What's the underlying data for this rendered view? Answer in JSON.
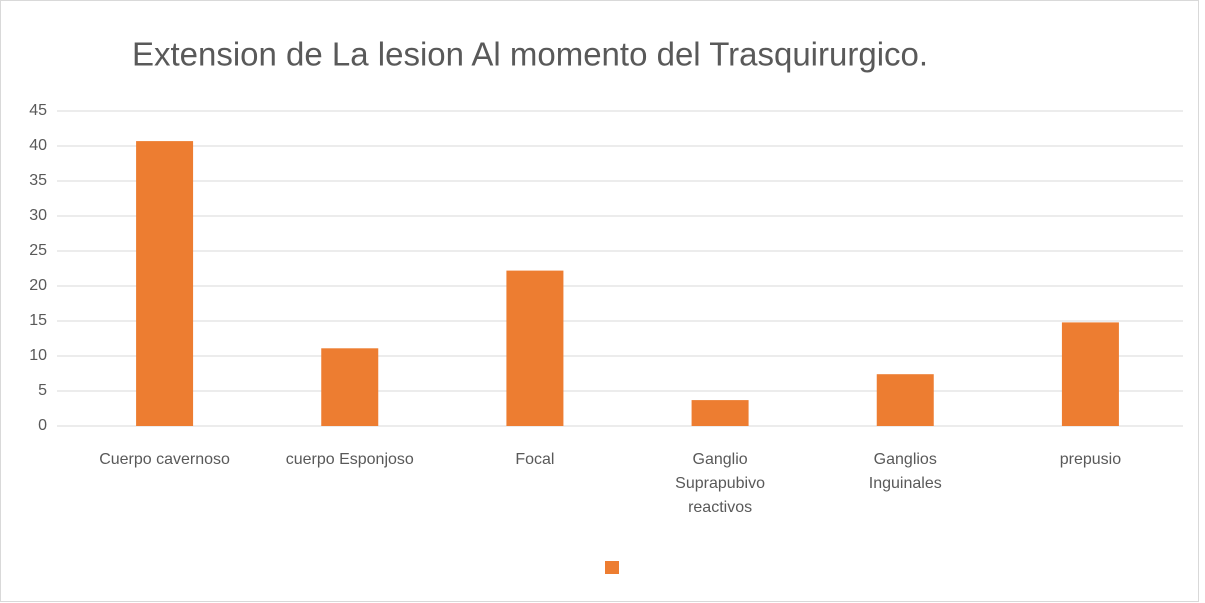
{
  "chart_data": {
    "type": "bar",
    "title": "Extension de La lesion Al momento del Trasquirurgico.",
    "categories": [
      "Cuerpo cavernoso",
      "cuerpo Esponjoso",
      "Focal",
      "Ganglio\nSuprapubivo\nreactivos",
      "Ganglios\nInguinales",
      "prepusio"
    ],
    "values": [
      40.7,
      11.1,
      22.2,
      3.7,
      7.4,
      14.8
    ],
    "color": "#ed7d31",
    "ylim": [
      0,
      45
    ],
    "yticks": [
      0,
      5,
      10,
      15,
      20,
      25,
      30,
      35,
      40,
      45
    ],
    "grid": true
  }
}
